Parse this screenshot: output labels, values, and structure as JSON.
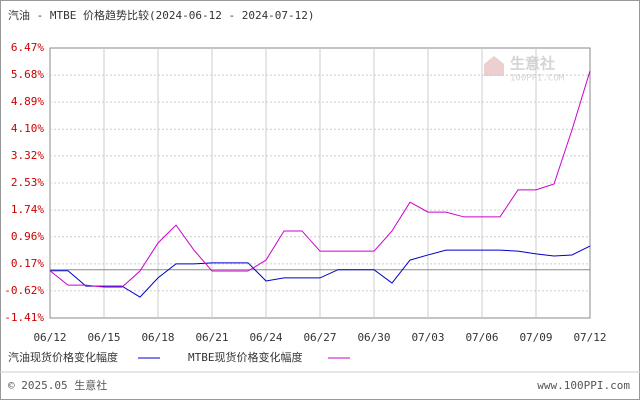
{
  "chart_data": {
    "type": "line",
    "title": "汽油 - MTBE 价格趋势比较(2024-06-12 - 2024-07-12)",
    "categories": [
      "06/12",
      null,
      null,
      "06/15",
      null,
      null,
      "06/18",
      null,
      null,
      "06/21",
      null,
      null,
      "06/24",
      null,
      null,
      "06/27",
      null,
      null,
      "06/30",
      null,
      null,
      "07/03",
      null,
      null,
      "07/06",
      null,
      null,
      "07/09",
      null,
      null,
      "07/12"
    ],
    "series": [
      {
        "name": "汽油现货价格变化幅度",
        "color": "#0000cc",
        "values": [
          -0.03,
          -0.03,
          -0.48,
          -0.48,
          -0.48,
          -0.8,
          -0.24,
          0.17,
          0.17,
          0.2,
          0.2,
          0.2,
          -0.33,
          -0.24,
          -0.24,
          -0.24,
          0.0,
          0.0,
          0.0,
          -0.39,
          0.28,
          0.43,
          0.57,
          0.57,
          0.57,
          0.57,
          0.54,
          0.46,
          0.4,
          0.43,
          0.69
        ]
      },
      {
        "name": "MTBE现货价格变化幅度",
        "color": "#cc00cc",
        "values": [
          -0.03,
          -0.45,
          -0.45,
          -0.51,
          -0.51,
          -0.04,
          0.78,
          1.3,
          0.57,
          -0.04,
          -0.04,
          -0.04,
          0.28,
          1.13,
          1.13,
          0.54,
          0.54,
          0.54,
          0.54,
          1.13,
          1.97,
          1.68,
          1.68,
          1.54,
          1.54,
          1.54,
          2.33,
          2.33,
          2.5,
          4.08,
          5.8
        ]
      }
    ],
    "ylim": [
      -1.41,
      6.47
    ],
    "yticks": [
      {
        "value": 6.47,
        "label": "6.47%"
      },
      {
        "value": 5.68,
        "label": "5.68%"
      },
      {
        "value": 4.89,
        "label": "4.89%"
      },
      {
        "value": 4.1,
        "label": "4.10%"
      },
      {
        "value": 3.32,
        "label": "3.32%"
      },
      {
        "value": 2.53,
        "label": "2.53%"
      },
      {
        "value": 1.74,
        "label": "1.74%"
      },
      {
        "value": 0.96,
        "label": "0.96%"
      },
      {
        "value": 0.17,
        "label": "0.17%"
      },
      {
        "value": -0.62,
        "label": "-0.62%"
      },
      {
        "value": -1.41,
        "label": "-1.41%"
      }
    ],
    "grid": true,
    "watermark": {
      "name": "生意社",
      "site": "100PPI.COM"
    },
    "footer": {
      "left": "© 2025.05 生意社",
      "right": "www.100PPI.com"
    }
  }
}
